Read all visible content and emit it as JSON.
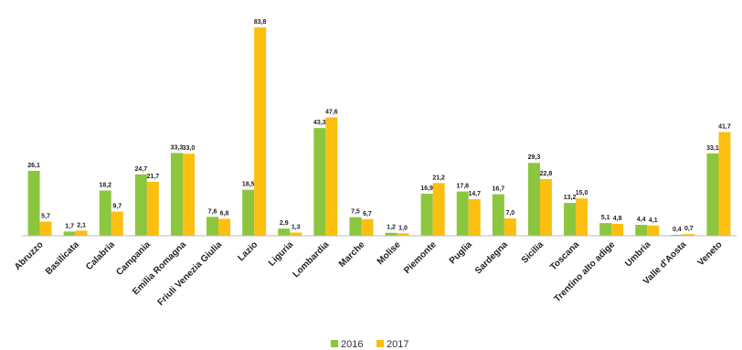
{
  "chart_data": {
    "type": "bar",
    "categories": [
      "Abruzzo",
      "Basilicata",
      "Calabria",
      "Campania",
      "Emilia Romagna",
      "Friuli Venezia Giulia",
      "Lazio",
      "Liguria",
      "Lombardia",
      "Marche",
      "Molise",
      "Piemonte",
      "Puglia",
      "Sardegna",
      "Sicilia",
      "Toscana",
      "Trentino alto adige",
      "Umbria",
      "Valle d'Aosta",
      "Veneto"
    ],
    "series": [
      {
        "name": "2016",
        "color": "#8cc63e",
        "values": [
          26.1,
          1.7,
          18.2,
          24.7,
          33.3,
          7.6,
          18.5,
          2.9,
          43.3,
          7.5,
          1.2,
          16.9,
          17.8,
          16.7,
          29.3,
          13.2,
          5.1,
          4.4,
          0.4,
          33.1
        ],
        "value_labels": [
          "26,1",
          "1,7",
          "18,2",
          "24,7",
          "33,3",
          "7,6",
          "18,5",
          "2,9",
          "43,3",
          "7,5",
          "1,2",
          "16,9",
          "17,8",
          "16,7",
          "29,3",
          "13,2",
          "5,1",
          "4,4",
          "0,4",
          "33,1"
        ]
      },
      {
        "name": "2017",
        "color": "#fcbf10",
        "values": [
          5.7,
          2.1,
          9.7,
          21.7,
          33.0,
          6.8,
          83.8,
          1.3,
          47.6,
          6.7,
          1.0,
          21.2,
          14.7,
          7.0,
          22.8,
          15.0,
          4.8,
          4.1,
          0.7,
          41.7
        ],
        "value_labels": [
          "5,7",
          "2,1",
          "9,7",
          "21,7",
          "33,0",
          "6,8",
          "83,8",
          "1,3",
          "47,6",
          "6,7",
          "1,0",
          "21,2",
          "14,7",
          "7,0",
          "22,8",
          "15,0",
          "4,8",
          "4,1",
          "0,7",
          "41,7"
        ]
      }
    ],
    "ylim": [
      0,
      90
    ]
  }
}
